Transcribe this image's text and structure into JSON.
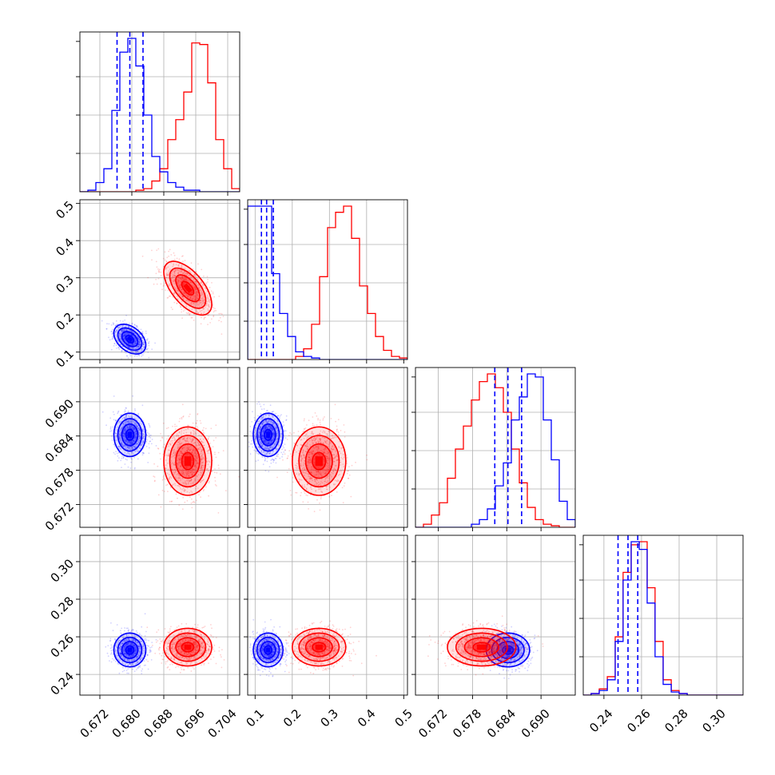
{
  "colors": {
    "series_a": "#0000ff",
    "series_b": "#ff0000",
    "grid": "#b0b0b0"
  },
  "chart_data": {
    "type": "corner",
    "parameters": [
      {
        "range": [
          0.667,
          0.707
        ],
        "ticks": [
          0.672,
          0.68,
          0.688,
          0.696,
          0.704
        ],
        "tick_labels": [
          "0.672",
          "0.680",
          "0.688",
          "0.696",
          "0.704"
        ]
      },
      {
        "range": [
          0.08,
          0.51
        ],
        "ticks": [
          0.1,
          0.2,
          0.3,
          0.4,
          0.5
        ],
        "tick_labels": [
          "0.1",
          "0.2",
          "0.3",
          "0.4",
          "0.5"
        ]
      },
      {
        "range": [
          0.668,
          0.696
        ],
        "ticks": [
          0.672,
          0.678,
          0.684,
          0.69
        ],
        "tick_labels": [
          "0.672",
          "0.678",
          "0.684",
          "0.690"
        ]
      },
      {
        "range": [
          0.229,
          0.314
        ],
        "ticks": [
          0.24,
          0.26,
          0.28,
          0.3
        ],
        "tick_labels": [
          "0.24",
          "0.26",
          "0.28",
          "0.30"
        ]
      }
    ],
    "series": [
      {
        "color": "#0000ff",
        "mean": [
          0.6795,
          0.135,
          0.6842,
          0.253
        ],
        "sd": [
          0.002,
          0.02,
          0.0019,
          0.0045
        ],
        "corr_1_2": -0.4,
        "quantiles_1d": [
          [
            0.6763,
            0.6795,
            0.6828
          ],
          [
            0.117,
            0.131,
            0.149
          ],
          [
            0.6819,
            0.6842,
            0.6866
          ],
          [
            0.2475,
            0.2528,
            0.258
          ]
        ]
      },
      {
        "color": "#ff0000",
        "mean": [
          0.694,
          0.272,
          0.6796,
          0.2545
        ],
        "sd": [
          0.003,
          0.036,
          0.003,
          0.005
        ],
        "corr_1_2": -0.6,
        "quantiles_1d": null
      }
    ],
    "diagonal_histograms": {
      "param_1": {
        "bin_edges": [
          0.667,
          0.669,
          0.671,
          0.673,
          0.675,
          0.677,
          0.679,
          0.681,
          0.683,
          0.685,
          0.687,
          0.689,
          0.691,
          0.693,
          0.695,
          0.697,
          0.699,
          0.701,
          0.703,
          0.705,
          0.707
        ],
        "series_a": [
          0,
          1,
          6,
          15,
          53,
          91,
          100,
          82,
          50,
          23,
          13,
          6,
          3,
          1,
          1,
          0,
          0,
          0,
          0,
          0
        ],
        "series_b": [
          0,
          0,
          0,
          0,
          0,
          0,
          0,
          1,
          2,
          7,
          15,
          34,
          47,
          65,
          97,
          96,
          71,
          34,
          15,
          2
        ]
      },
      "param_2": {
        "bin_edges": [
          0.08,
          0.1015,
          0.123,
          0.1445,
          0.166,
          0.1875,
          0.209,
          0.2305,
          0.252,
          0.2735,
          0.295,
          0.3165,
          0.338,
          0.3595,
          0.381,
          0.4025,
          0.424,
          0.4455,
          0.467,
          0.4885,
          0.51
        ],
        "series_a": [
          100,
          100,
          100,
          56,
          30,
          15,
          5,
          2,
          1,
          0,
          0,
          0,
          0,
          0,
          0,
          0,
          0,
          0,
          0,
          0
        ],
        "series_b": [
          0,
          0,
          0,
          0,
          0,
          0,
          2,
          7,
          23,
          54,
          86,
          96,
          100,
          79,
          48,
          30,
          15,
          6,
          2,
          1
        ]
      },
      "param_3": {
        "bin_edges": [
          0.668,
          0.6694,
          0.6708,
          0.6722,
          0.6736,
          0.675,
          0.6764,
          0.6778,
          0.6792,
          0.6806,
          0.682,
          0.6834,
          0.6848,
          0.6862,
          0.6876,
          0.689,
          0.6904,
          0.6918,
          0.6932,
          0.6946,
          0.696
        ],
        "series_a": [
          0,
          0,
          0,
          0,
          0,
          0,
          0,
          2,
          5,
          12,
          27,
          42,
          70,
          85,
          100,
          98,
          70,
          44,
          17,
          5
        ],
        "series_b": [
          0,
          2,
          8,
          16,
          32,
          51,
          66,
          83,
          95,
          100,
          91,
          75,
          51,
          29,
          13,
          5,
          2,
          1,
          0,
          0
        ]
      },
      "param_4": {
        "bin_edges": [
          0.229,
          0.2332,
          0.2375,
          0.2418,
          0.246,
          0.2502,
          0.2545,
          0.2588,
          0.263,
          0.2672,
          0.2715,
          0.2758,
          0.28,
          0.2843,
          0.2885,
          0.2927,
          0.297,
          0.3013,
          0.3055,
          0.3097,
          0.314
        ],
        "series_a": [
          0,
          1,
          3,
          10,
          35,
          75,
          100,
          95,
          60,
          25,
          7,
          2,
          1,
          0,
          0,
          0,
          0,
          0,
          0,
          0
        ],
        "series_b": [
          0,
          1,
          4,
          12,
          38,
          80,
          98,
          100,
          70,
          35,
          10,
          3,
          1,
          0,
          0,
          0,
          0,
          0,
          0,
          0
        ]
      }
    },
    "grid": true,
    "contour_levels_sigma": [
      0.5,
      1.0,
      1.5,
      2.0
    ]
  }
}
